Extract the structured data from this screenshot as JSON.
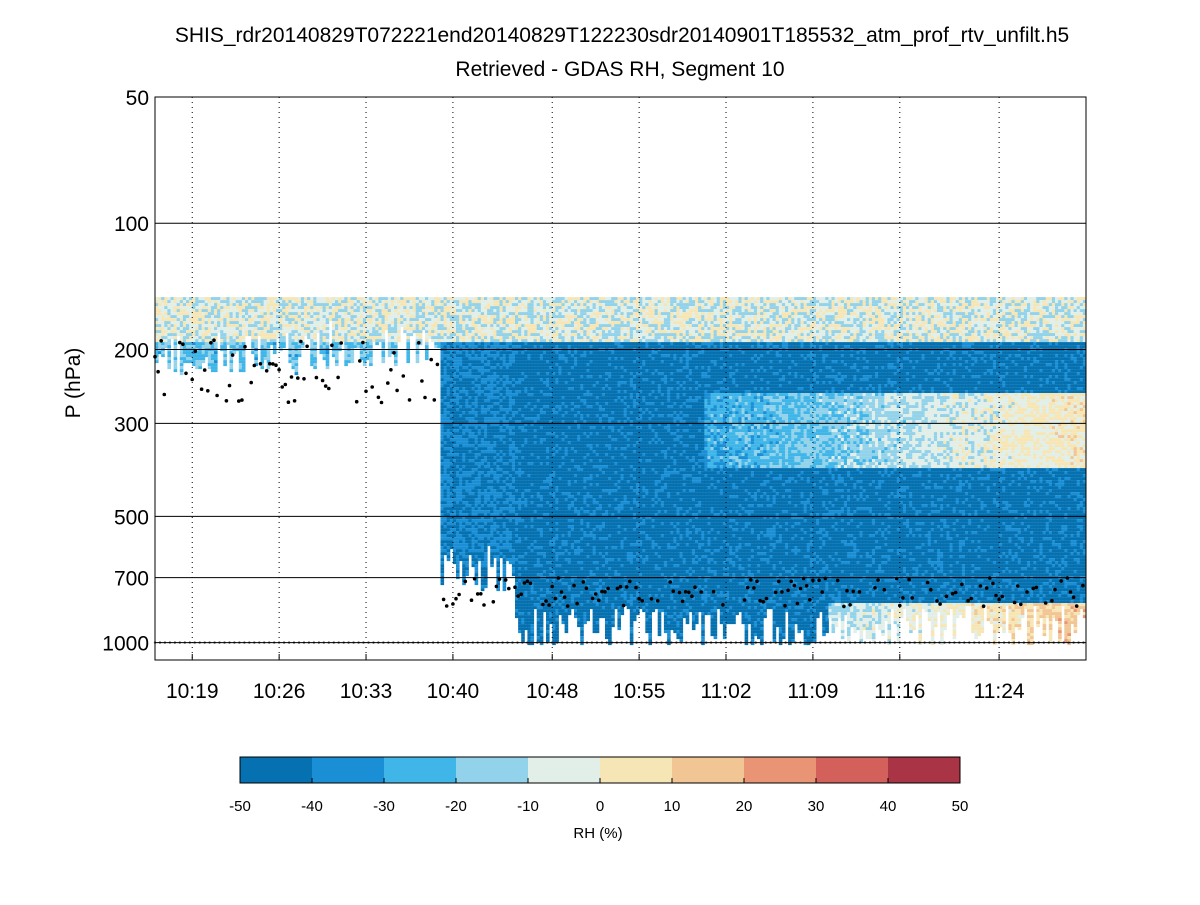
{
  "chart_data": {
    "type": "heatmap",
    "title": "SHIS_rdr20140829T072221end20140829T122230sdr20140901T185532_atm_prof_rtv_unfilt.h5",
    "subtitle": "Retrieved - GDAS RH, Segment 10",
    "ylabel": "P (hPa)",
    "xlabel": "",
    "y_scale": "log",
    "y_reversed": true,
    "ylim": [
      50,
      1100
    ],
    "y_ticks": [
      50,
      100,
      200,
      300,
      500,
      700,
      1000
    ],
    "y_tick_labels": [
      "50",
      "100",
      "200",
      "300",
      "500",
      "700",
      "1000"
    ],
    "x_range": [
      "10:16",
      "11:31"
    ],
    "x_ticks": [
      "10:19",
      "10:26",
      "10:33",
      "10:40",
      "10:48",
      "10:55",
      "11:02",
      "11:09",
      "11:16",
      "11:24"
    ],
    "grid": {
      "x": "dotted",
      "y": "solid-at-labeled-ticks"
    },
    "colorbar": {
      "label": "RH (%)",
      "min": -50,
      "max": 50,
      "ticks": [
        -50,
        -40,
        -30,
        -20,
        -10,
        0,
        10,
        20,
        30,
        40,
        50
      ],
      "tick_labels": [
        "-50",
        "-40",
        "-30",
        "-20",
        "-10",
        "0",
        "10",
        "20",
        "30",
        "40",
        "50"
      ],
      "colors": [
        "#0571b0",
        "#1a8fd6",
        "#3fb5e8",
        "#92d2ea",
        "#e2eee8",
        "#f7e6b5",
        "#f2c594",
        "#e99575",
        "#d4605c",
        "#a83445"
      ]
    },
    "field_description_note": "",
    "cloud_top_markers_color": "#000000",
    "surface_markers_color": "#555555",
    "surface_pressure": 1000,
    "periods": [
      {
        "start": "10:16",
        "end": "10:30",
        "top": 150,
        "bottom": 200,
        "base_rh": -22
      },
      {
        "start": "10:30",
        "end": "10:39",
        "top": 150,
        "bottom": 190,
        "base_rh": -20
      },
      {
        "start": "10:39",
        "end": "10:45",
        "top": 150,
        "bottom": 650,
        "base_rh": -40
      },
      {
        "start": "10:45",
        "end": "11:31",
        "top": 150,
        "bottom": 900,
        "base_rh": -45
      }
    ]
  }
}
